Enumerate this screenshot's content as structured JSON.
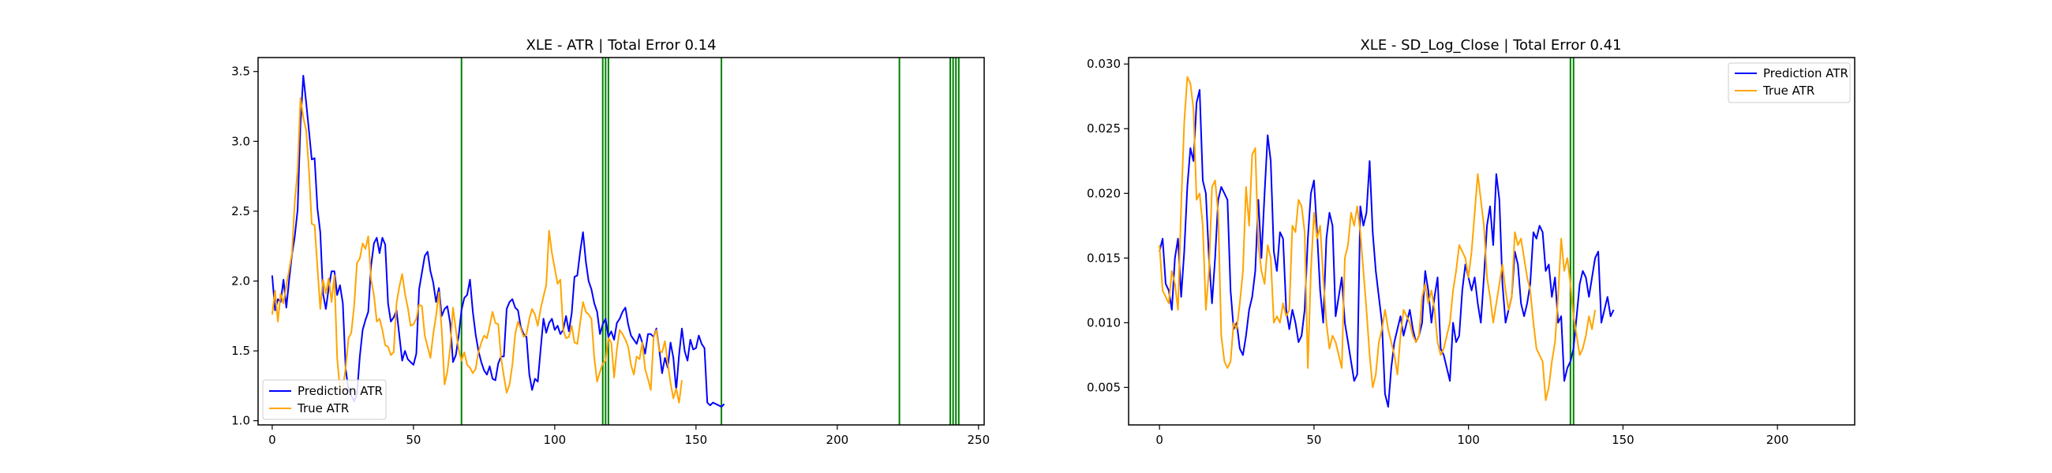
{
  "chart_data": [
    {
      "type": "line",
      "title": "XLE - ATR | Total Error 0.14",
      "xlabel": "",
      "ylabel": "",
      "xlim": [
        -5,
        252
      ],
      "ylim": [
        0.97,
        3.6
      ],
      "xticks": [
        0,
        50,
        100,
        150,
        200,
        250
      ],
      "yticks": [
        1.0,
        1.5,
        2.0,
        2.5,
        3.0,
        3.5
      ],
      "ytick_labels": [
        "1.0",
        "1.5",
        "2.0",
        "2.5",
        "3.0",
        "3.5"
      ],
      "legend_position": "lower-left",
      "grid": false,
      "vlines": [
        67,
        117,
        118,
        119,
        159,
        222,
        240,
        241,
        242,
        243
      ],
      "vline_color": "#008000",
      "series": [
        {
          "name": "Prediction ATR",
          "color": "#0000ff",
          "x_start": 0,
          "values": [
            2.04,
            1.79,
            1.87,
            1.85,
            2.01,
            1.81,
            2.01,
            2.19,
            2.32,
            2.51,
            3.12,
            3.47,
            3.28,
            3.08,
            2.87,
            2.88,
            2.52,
            2.35,
            1.91,
            1.8,
            1.95,
            2.07,
            2.07,
            1.9,
            1.97,
            1.84,
            1.37,
            1.22,
            1.18,
            1.14,
            1.19,
            1.46,
            1.65,
            1.72,
            1.78,
            2.11,
            2.27,
            2.31,
            2.2,
            2.31,
            2.26,
            1.84,
            1.71,
            1.74,
            1.79,
            1.61,
            1.43,
            1.5,
            1.44,
            1.42,
            1.4,
            1.48,
            1.94,
            2.06,
            2.18,
            2.21,
            2.07,
            1.99,
            1.85,
            1.95,
            1.75,
            1.8,
            1.82,
            1.7,
            1.42,
            1.47,
            1.61,
            1.79,
            1.88,
            1.9,
            2.01,
            1.78,
            1.62,
            1.5,
            1.42,
            1.36,
            1.33,
            1.39,
            1.3,
            1.29,
            1.41,
            1.46,
            1.46,
            1.8,
            1.85,
            1.87,
            1.81,
            1.79,
            1.67,
            1.62,
            1.6,
            1.33,
            1.22,
            1.3,
            1.28,
            1.51,
            1.73,
            1.63,
            1.7,
            1.73,
            1.65,
            1.68,
            1.62,
            1.65,
            1.75,
            1.64,
            1.77,
            2.03,
            2.04,
            2.21,
            2.35,
            2.14,
            2.0,
            1.94,
            1.84,
            1.78,
            1.62,
            1.69,
            1.73,
            1.6,
            1.64,
            1.58,
            1.7,
            1.73,
            1.78,
            1.81,
            1.69,
            1.61,
            1.58,
            1.55,
            1.62,
            1.56,
            1.48,
            1.62,
            1.62,
            1.6,
            1.66,
            1.51,
            1.34,
            1.45,
            1.38,
            1.56,
            1.45,
            1.22,
            1.47,
            1.66,
            1.5,
            1.43,
            1.58,
            1.51,
            1.52,
            1.61,
            1.55,
            1.52,
            1.13,
            1.11,
            1.13,
            1.12,
            1.11,
            1.1,
            1.12
          ],
          "comment": ""
        },
        {
          "name": "True ATR",
          "color": "#ffa500",
          "x_start": 0,
          "values": [
            1.76,
            1.93,
            1.71,
            1.91,
            1.84,
            1.97,
            2.08,
            2.2,
            2.57,
            2.79,
            3.31,
            3.17,
            3.08,
            2.8,
            2.41,
            2.4,
            2.1,
            1.8,
            2.01,
            1.91,
            2.02,
            1.85,
            2.04,
            1.45,
            1.22,
            1.23,
            1.38,
            1.59,
            1.63,
            1.82,
            2.13,
            2.16,
            2.27,
            2.23,
            2.32,
            2.01,
            1.9,
            1.71,
            1.73,
            1.65,
            1.54,
            1.53,
            1.47,
            1.49,
            1.84,
            1.96,
            2.05,
            1.91,
            1.81,
            1.68,
            1.69,
            1.73,
            1.83,
            1.82,
            1.61,
            1.53,
            1.45,
            1.62,
            1.75,
            1.92,
            1.65,
            1.26,
            1.35,
            1.52,
            1.81,
            1.65,
            1.51,
            1.43,
            1.49,
            1.4,
            1.38,
            1.34,
            1.37,
            1.49,
            1.56,
            1.61,
            1.59,
            1.68,
            1.78,
            1.7,
            1.69,
            1.45,
            1.32,
            1.2,
            1.26,
            1.4,
            1.62,
            1.71,
            1.66,
            1.6,
            1.62,
            1.73,
            1.8,
            1.76,
            1.68,
            1.8,
            1.89,
            1.97,
            2.36,
            2.2,
            2.09,
            1.98,
            2.01,
            1.65,
            1.59,
            1.6,
            1.68,
            1.56,
            1.55,
            1.7,
            1.85,
            1.78,
            1.76,
            1.73,
            1.45,
            1.28,
            1.35,
            1.41,
            1.43,
            1.59,
            1.56,
            1.31,
            1.51,
            1.65,
            1.62,
            1.58,
            1.53,
            1.4,
            1.33,
            1.46,
            1.44,
            1.56,
            1.37,
            1.3,
            1.22,
            1.6,
            1.65,
            1.5,
            1.49,
            1.57,
            1.41,
            1.27,
            1.16,
            1.23,
            1.13,
            1.29
          ]
        }
      ]
    },
    {
      "type": "line",
      "title": "XLE - SD_Log_Close | Total Error 0.41",
      "xlabel": "",
      "ylabel": "",
      "xlim": [
        -10,
        225
      ],
      "ylim": [
        0.0021,
        0.0305
      ],
      "xticks": [
        0,
        50,
        100,
        150,
        200
      ],
      "yticks": [
        0.005,
        0.01,
        0.015,
        0.02,
        0.025,
        0.03
      ],
      "ytick_labels": [
        "0.005",
        "0.010",
        "0.015",
        "0.020",
        "0.025",
        "0.030"
      ],
      "legend_position": "top-right",
      "grid": false,
      "vlines": [
        133,
        134
      ],
      "vline_color": "#008000",
      "series": [
        {
          "name": "Prediction ATR",
          "color": "#0000ff",
          "x_start": 0,
          "values": [
            0.0155,
            0.0165,
            0.013,
            0.0125,
            0.011,
            0.015,
            0.0165,
            0.012,
            0.0155,
            0.0205,
            0.0235,
            0.0225,
            0.027,
            0.028,
            0.021,
            0.02,
            0.015,
            0.0115,
            0.015,
            0.0195,
            0.0205,
            0.02,
            0.0195,
            0.0125,
            0.0095,
            0.01,
            0.008,
            0.0075,
            0.009,
            0.011,
            0.012,
            0.014,
            0.0195,
            0.015,
            0.02,
            0.0245,
            0.0225,
            0.0155,
            0.014,
            0.017,
            0.0165,
            0.011,
            0.0095,
            0.011,
            0.01,
            0.0085,
            0.009,
            0.011,
            0.0165,
            0.02,
            0.021,
            0.017,
            0.0125,
            0.01,
            0.0165,
            0.0185,
            0.0175,
            0.0105,
            0.012,
            0.0135,
            0.01,
            0.0085,
            0.007,
            0.0055,
            0.006,
            0.019,
            0.0175,
            0.0185,
            0.0225,
            0.017,
            0.014,
            0.012,
            0.01,
            0.0045,
            0.0035,
            0.0065,
            0.0085,
            0.0095,
            0.0105,
            0.009,
            0.01,
            0.011,
            0.0095,
            0.0085,
            0.009,
            0.01,
            0.014,
            0.0125,
            0.01,
            0.012,
            0.0135,
            0.008,
            0.0075,
            0.0065,
            0.0055,
            0.01,
            0.0085,
            0.009,
            0.0125,
            0.0145,
            0.0135,
            0.0125,
            0.0135,
            0.0115,
            0.01,
            0.0135,
            0.0175,
            0.019,
            0.016,
            0.0215,
            0.0195,
            0.013,
            0.01,
            0.011,
            0.012,
            0.0155,
            0.0145,
            0.0115,
            0.0105,
            0.0115,
            0.013,
            0.017,
            0.0165,
            0.0175,
            0.017,
            0.014,
            0.0145,
            0.012,
            0.0135,
            0.01,
            0.0105,
            0.0055,
            0.0065,
            0.007,
            0.008,
            0.0105,
            0.013,
            0.014,
            0.0135,
            0.012,
            0.0135,
            0.015,
            0.0155,
            0.01,
            0.011,
            0.012,
            0.0105,
            0.011
          ]
        },
        {
          "name": "True ATR",
          "color": "#ffa500",
          "x_start": 0,
          "values": [
            0.016,
            0.0125,
            0.012,
            0.0115,
            0.014,
            0.013,
            0.011,
            0.019,
            0.0255,
            0.029,
            0.0285,
            0.0265,
            0.0195,
            0.02,
            0.0175,
            0.011,
            0.014,
            0.0205,
            0.021,
            0.0185,
            0.009,
            0.007,
            0.0065,
            0.007,
            0.01,
            0.0095,
            0.0115,
            0.014,
            0.0205,
            0.0175,
            0.023,
            0.0235,
            0.016,
            0.014,
            0.013,
            0.016,
            0.015,
            0.01,
            0.0105,
            0.01,
            0.0115,
            0.0105,
            0.011,
            0.0175,
            0.017,
            0.0195,
            0.019,
            0.017,
            0.0065,
            0.014,
            0.0185,
            0.0165,
            0.0175,
            0.0135,
            0.01,
            0.008,
            0.009,
            0.0085,
            0.0075,
            0.0065,
            0.015,
            0.016,
            0.0185,
            0.0175,
            0.019,
            0.017,
            0.014,
            0.011,
            0.0075,
            0.005,
            0.006,
            0.0085,
            0.0095,
            0.011,
            0.0095,
            0.0085,
            0.0075,
            0.006,
            0.009,
            0.011,
            0.0105,
            0.01,
            0.009,
            0.0085,
            0.009,
            0.012,
            0.013,
            0.0115,
            0.0125,
            0.011,
            0.0085,
            0.0075,
            0.008,
            0.009,
            0.01,
            0.0125,
            0.014,
            0.016,
            0.0155,
            0.015,
            0.0135,
            0.0155,
            0.0185,
            0.0215,
            0.0195,
            0.0175,
            0.0135,
            0.012,
            0.01,
            0.0115,
            0.013,
            0.0145,
            0.0125,
            0.011,
            0.012,
            0.017,
            0.016,
            0.0165,
            0.015,
            0.0135,
            0.0125,
            0.01,
            0.008,
            0.0075,
            0.007,
            0.004,
            0.005,
            0.007,
            0.0085,
            0.012,
            0.0165,
            0.014,
            0.015,
            0.013,
            0.0105,
            0.009,
            0.0075,
            0.008,
            0.009,
            0.0105,
            0.0095,
            0.011
          ]
        }
      ]
    }
  ]
}
